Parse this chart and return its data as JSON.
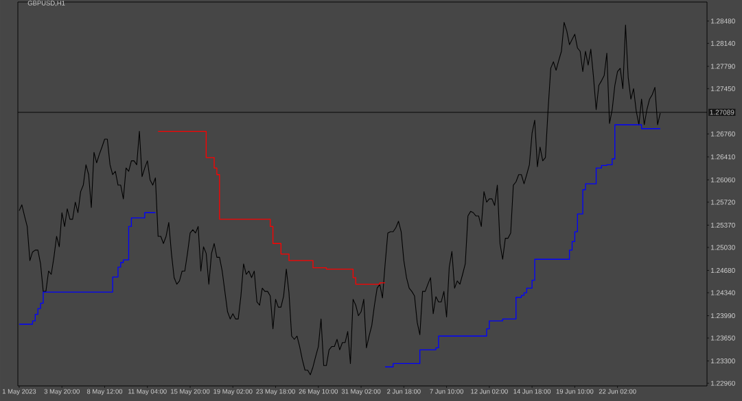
{
  "chart_data": {
    "type": "line",
    "title": "GBPUSD,H1",
    "categories": [
      "1 May 2023",
      null,
      null,
      null,
      null,
      null,
      null,
      null,
      null,
      null,
      null,
      null,
      null,
      null,
      null,
      null,
      "3 May 20:00",
      null,
      null,
      null,
      null,
      null,
      null,
      null,
      null,
      null,
      null,
      null,
      null,
      null,
      null,
      null,
      "8 May 12:00",
      null,
      null,
      null,
      null,
      null,
      null,
      null,
      null,
      null,
      null,
      null,
      null,
      null,
      null,
      null,
      "11 May 04:00",
      null,
      null,
      null,
      null,
      null,
      null,
      null,
      null,
      null,
      null,
      null,
      null,
      null,
      null,
      null,
      "15 May 20:00",
      null,
      null,
      null,
      null,
      null,
      null,
      null,
      null,
      null,
      null,
      null,
      null,
      null,
      null,
      null,
      "19 May 02:00",
      null,
      null,
      null,
      null,
      null,
      null,
      null,
      null,
      null,
      null,
      null,
      null,
      null,
      null,
      null,
      "23 May 18:00",
      null,
      null,
      null,
      null,
      null,
      null,
      null,
      null,
      null,
      null,
      null,
      null,
      null,
      null,
      null,
      "26 May 10:00",
      null,
      null,
      null,
      null,
      null,
      null,
      null,
      null,
      null,
      null,
      null,
      null,
      null,
      null,
      null,
      "31 May 02:00",
      null,
      null,
      null,
      null,
      null,
      null,
      null,
      null,
      null,
      null,
      null,
      null,
      null,
      null,
      null,
      "2 Jun 18:00",
      null,
      null,
      null,
      null,
      null,
      null,
      null,
      null,
      null,
      null,
      null,
      null,
      null,
      null,
      null,
      "7 Jun 10:00",
      null,
      null,
      null,
      null,
      null,
      null,
      null,
      null,
      null,
      null,
      null,
      null,
      null,
      null,
      null,
      "12 Jun 02:00",
      null,
      null,
      null,
      null,
      null,
      null,
      null,
      null,
      null,
      null,
      null,
      null,
      null,
      null,
      null,
      "14 Jun 18:00",
      null,
      null,
      null,
      null,
      null,
      null,
      null,
      null,
      null,
      null,
      null,
      null,
      null,
      null,
      null,
      "19 Jun 10:00",
      null,
      null,
      null,
      null,
      null,
      null,
      null,
      null,
      null,
      null,
      null,
      null,
      null,
      null,
      null,
      "22 Jun 02:00",
      null,
      null,
      null,
      null,
      null,
      null,
      null,
      null,
      null,
      null,
      null,
      null,
      null,
      null,
      null,
      null,
      null,
      null,
      null,
      null,
      null,
      null,
      null,
      null,
      null,
      null,
      null,
      null,
      null,
      null,
      null,
      null,
      null
    ],
    "ylim": [
      1.2292,
      1.2877
    ],
    "yticks": [
      {
        "value": 1.2848,
        "label": "1.28480"
      },
      {
        "value": 1.2814,
        "label": "1.28140"
      },
      {
        "value": 1.2779,
        "label": "1.27790"
      },
      {
        "value": 1.2745,
        "label": "1.27450"
      },
      {
        "value": 1.2676,
        "label": "1.26760"
      },
      {
        "value": 1.2641,
        "label": "1.26410"
      },
      {
        "value": 1.2606,
        "label": "1.26060"
      },
      {
        "value": 1.2572,
        "label": "1.25720"
      },
      {
        "value": 1.2537,
        "label": "1.25370"
      },
      {
        "value": 1.2503,
        "label": "1.25030"
      },
      {
        "value": 1.2468,
        "label": "1.24680"
      },
      {
        "value": 1.2434,
        "label": "1.24340"
      },
      {
        "value": 1.2399,
        "label": "1.23990"
      },
      {
        "value": 1.2365,
        "label": "1.23650"
      },
      {
        "value": 1.233,
        "label": "1.23300"
      },
      {
        "value": 1.2296,
        "label": "1.22960"
      }
    ],
    "series": [
      {
        "type": "line",
        "color": "#000000",
        "values": [
          1.2559,
          1.2568,
          1.2551,
          1.2535,
          1.2483,
          1.2496,
          1.2499,
          1.2499,
          1.2478,
          1.2436,
          1.2436,
          1.2467,
          1.2462,
          1.2488,
          1.252,
          1.2504,
          1.2556,
          1.2535,
          1.2562,
          1.2546,
          1.2546,
          1.2572,
          1.2556,
          1.2588,
          1.2598,
          1.2629,
          1.2614,
          1.2564,
          1.2648,
          1.2632,
          1.2645,
          1.2656,
          1.2668,
          1.2668,
          1.2629,
          1.2614,
          1.2619,
          1.2598,
          1.2598,
          1.2577,
          1.2624,
          1.2619,
          1.2635,
          1.2635,
          1.2629,
          1.268,
          1.2611,
          1.2624,
          1.2635,
          1.2606,
          1.2598,
          1.2609,
          1.252,
          1.252,
          1.2509,
          1.252,
          1.2541,
          1.2494,
          1.2457,
          1.2447,
          1.2452,
          1.2467,
          1.2467,
          1.2494,
          1.2525,
          1.253,
          1.2525,
          1.2535,
          1.2467,
          1.2504,
          1.2494,
          1.2447,
          1.2494,
          1.2509,
          1.2488,
          1.2488,
          1.2467,
          1.2436,
          1.2405,
          1.2394,
          1.2402,
          1.2394,
          1.2394,
          1.2429,
          1.2478,
          1.2462,
          1.2467,
          1.2457,
          1.2467,
          1.242,
          1.2415,
          1.2441,
          1.2436,
          1.2436,
          1.2429,
          1.2379,
          1.2424,
          1.2412,
          1.2412,
          1.2429,
          1.247,
          1.2434,
          1.2368,
          1.2363,
          1.2368,
          1.2352,
          1.2332,
          1.2316,
          1.2316,
          1.2309,
          1.2321,
          1.2337,
          1.2352,
          1.2394,
          1.2323,
          1.2323,
          1.2347,
          1.2352,
          1.2352,
          1.2363,
          1.2347,
          1.2358,
          1.2358,
          1.2375,
          1.2326,
          1.2424,
          1.2415,
          1.2399,
          1.2405,
          1.2424,
          1.235,
          1.2368,
          1.2384,
          1.2415,
          1.2441,
          1.2447,
          1.2426,
          1.2478,
          1.2525,
          1.2527,
          1.2527,
          1.2533,
          1.2543,
          1.2527,
          1.2483,
          1.2457,
          1.2441,
          1.2436,
          1.2429,
          1.2389,
          1.237,
          1.2436,
          1.2436,
          1.2447,
          1.2457,
          1.2402,
          1.2428,
          1.242,
          1.242,
          1.2436,
          1.2397,
          1.2473,
          1.2497,
          1.2441,
          1.2452,
          1.2447,
          1.2462,
          1.2478,
          1.2551,
          1.2558,
          1.2556,
          1.2551,
          1.2551,
          1.2535,
          1.2588,
          1.2572,
          1.2577,
          1.2577,
          1.2567,
          1.2598,
          1.2509,
          1.2485,
          1.2517,
          1.2517,
          1.2525,
          1.2598,
          1.2603,
          1.2614,
          1.2614,
          1.26,
          1.2614,
          1.2629,
          1.2677,
          1.2697,
          1.2626,
          1.2656,
          1.2635,
          1.264,
          1.2713,
          1.2776,
          1.2786,
          1.2773,
          1.2788,
          1.2802,
          1.2846,
          1.2833,
          1.2812,
          1.282,
          1.2828,
          1.2807,
          1.2802,
          1.2771,
          1.2802,
          1.2781,
          1.2805,
          1.2763,
          1.2713,
          1.275,
          1.2757,
          1.2765,
          1.2799,
          1.2692,
          1.2713,
          1.275,
          1.2771,
          1.2776,
          1.2745,
          1.2842,
          1.2762,
          1.2729,
          1.2745,
          1.2711,
          1.269,
          1.2729,
          1.269,
          1.2713,
          1.2729,
          1.2736,
          1.2747,
          1.269,
          1.2708,
          null,
          null,
          null,
          null,
          null,
          null,
          null,
          null,
          null,
          null,
          null,
          null,
          null,
          null,
          null,
          null,
          null
        ]
      },
      {
        "type": "step",
        "color": "#0000ff",
        "values": [
          1.2386,
          1.2386,
          1.2386,
          1.2386,
          1.2386,
          1.2391,
          1.2401,
          1.241,
          1.2418,
          1.2435,
          1.2435,
          1.2435,
          1.2435,
          1.2435,
          1.2435,
          1.2435,
          1.2435,
          1.2435,
          1.2435,
          1.2435,
          1.2435,
          1.2435,
          1.2435,
          1.2435,
          1.2435,
          1.2435,
          1.2435,
          1.2435,
          1.2435,
          1.2435,
          1.2435,
          1.2435,
          1.2435,
          1.2435,
          1.2435,
          1.2458,
          1.2458,
          1.2473,
          1.248,
          1.2484,
          1.2484,
          1.2535,
          1.2548,
          1.2548,
          1.2548,
          1.2548,
          1.2548,
          1.2556,
          1.2556,
          1.2556,
          1.2556,
          1.2556,
          null,
          null,
          null,
          null,
          null,
          null,
          null,
          null,
          null,
          null,
          null,
          null,
          null,
          null,
          null,
          null,
          null,
          null,
          null,
          null,
          null,
          null,
          null,
          null,
          null,
          null,
          null,
          null,
          null,
          null,
          null,
          null,
          null,
          null,
          null,
          null,
          null,
          null,
          null,
          null,
          null,
          null,
          null,
          null,
          null,
          null,
          null,
          null,
          null,
          null,
          null,
          null,
          null,
          null,
          null,
          null,
          null,
          null,
          null,
          null,
          null,
          null,
          null,
          null,
          null,
          null,
          null,
          null,
          null,
          null,
          null,
          null,
          null,
          null,
          null,
          null,
          null,
          null,
          null,
          null,
          null,
          null,
          null,
          null,
          null,
          1.2321,
          1.2321,
          1.2321,
          1.2326,
          1.2326,
          1.2326,
          1.2326,
          1.2326,
          1.2326,
          1.2326,
          1.2326,
          1.2326,
          1.2326,
          1.2347,
          1.2347,
          1.2347,
          1.2347,
          1.2347,
          1.2347,
          1.235,
          1.2368,
          1.2368,
          1.2368,
          1.2368,
          1.2368,
          1.2368,
          1.2368,
          1.2368,
          1.2368,
          1.2368,
          1.2368,
          1.2368,
          1.2368,
          1.2368,
          1.2368,
          1.2368,
          1.2368,
          1.2368,
          1.2379,
          1.2391,
          1.2391,
          1.2391,
          1.2391,
          1.2391,
          1.2394,
          1.2394,
          1.2394,
          1.2394,
          1.2394,
          1.2427,
          1.2427,
          1.243,
          1.2434,
          1.2441,
          1.2441,
          1.2453,
          1.2485,
          1.2485,
          1.2485,
          1.2485,
          1.2485,
          1.2485,
          1.2485,
          1.2485,
          1.2485,
          1.2485,
          1.2485,
          1.2485,
          1.2485,
          1.2499,
          1.2512,
          1.2527,
          1.2554,
          1.2554,
          1.2591,
          1.26,
          1.26,
          1.26,
          1.26,
          1.2624,
          1.2624,
          1.2628,
          1.2628,
          1.2629,
          1.2629,
          1.2638,
          1.269,
          1.269,
          1.269,
          1.269,
          1.269,
          1.269,
          1.269,
          1.269,
          1.269,
          1.269,
          1.2684,
          1.2684,
          1.2684,
          1.2684,
          1.2684,
          1.2684,
          1.2684,
          1.2684,
          null,
          null,
          null,
          null,
          null,
          null,
          null,
          null,
          null,
          null,
          null,
          null,
          null,
          null,
          null,
          null,
          null
        ]
      },
      {
        "type": "step",
        "color": "#ff0000",
        "values": [
          null,
          null,
          null,
          null,
          null,
          null,
          null,
          null,
          null,
          null,
          null,
          null,
          null,
          null,
          null,
          null,
          null,
          null,
          null,
          null,
          null,
          null,
          null,
          null,
          null,
          null,
          null,
          null,
          null,
          null,
          null,
          null,
          null,
          null,
          null,
          null,
          null,
          null,
          null,
          null,
          null,
          null,
          null,
          null,
          null,
          null,
          null,
          null,
          null,
          null,
          null,
          null,
          1.268,
          1.268,
          1.268,
          1.268,
          1.268,
          1.268,
          1.268,
          1.268,
          1.268,
          1.268,
          1.268,
          1.268,
          1.268,
          1.268,
          1.268,
          1.268,
          1.268,
          1.268,
          1.264,
          1.264,
          1.264,
          1.2624,
          1.2614,
          1.2546,
          1.2546,
          1.2546,
          1.2546,
          1.2546,
          1.2546,
          1.2546,
          1.2546,
          1.2546,
          1.2546,
          1.2546,
          1.2546,
          1.2546,
          1.2546,
          1.2546,
          1.2546,
          1.2546,
          1.2546,
          1.2546,
          1.2535,
          1.2509,
          1.2509,
          1.2509,
          1.2493,
          1.2493,
          1.2493,
          1.2483,
          1.2483,
          1.2483,
          1.2483,
          1.2483,
          1.2483,
          1.2483,
          1.2483,
          1.2483,
          1.2472,
          1.2472,
          1.2472,
          1.2472,
          1.2472,
          1.247,
          1.247,
          1.247,
          1.247,
          1.247,
          1.247,
          1.247,
          1.247,
          1.247,
          1.247,
          1.2457,
          1.2447,
          1.2447,
          1.2447,
          1.2447,
          1.2447,
          1.2447,
          1.2447,
          1.2447,
          1.2447,
          1.2449,
          1.2449,
          1.2449,
          null,
          null,
          null,
          null,
          null,
          null,
          null,
          null,
          null,
          null,
          null,
          null,
          null,
          null,
          null,
          null,
          null,
          null,
          null,
          null,
          null,
          null,
          null,
          null,
          null,
          null,
          null,
          null,
          null,
          null,
          null,
          null,
          null,
          null,
          null,
          null,
          null,
          null,
          null,
          null,
          null,
          null,
          null,
          null,
          null,
          null,
          null,
          null,
          null,
          null,
          null,
          null,
          null,
          null,
          null,
          null,
          null,
          null,
          null,
          null,
          null,
          null,
          null,
          null,
          null,
          null,
          null,
          null,
          null,
          null,
          null,
          null,
          null,
          null,
          null,
          null,
          null,
          null,
          null,
          null,
          null,
          null,
          null,
          null,
          null,
          null,
          null,
          null,
          null,
          null,
          null,
          null,
          null,
          null,
          null,
          null,
          null,
          null,
          null,
          null,
          null,
          null,
          null,
          null,
          null,
          null,
          null,
          null,
          null,
          null,
          null,
          null,
          null,
          null,
          null,
          null,
          null,
          null,
          null,
          null
        ]
      }
    ],
    "ref_lines": [
      {
        "axis": "y",
        "value": 1.27089,
        "label": "1.27089",
        "color": "#000000"
      }
    ]
  }
}
